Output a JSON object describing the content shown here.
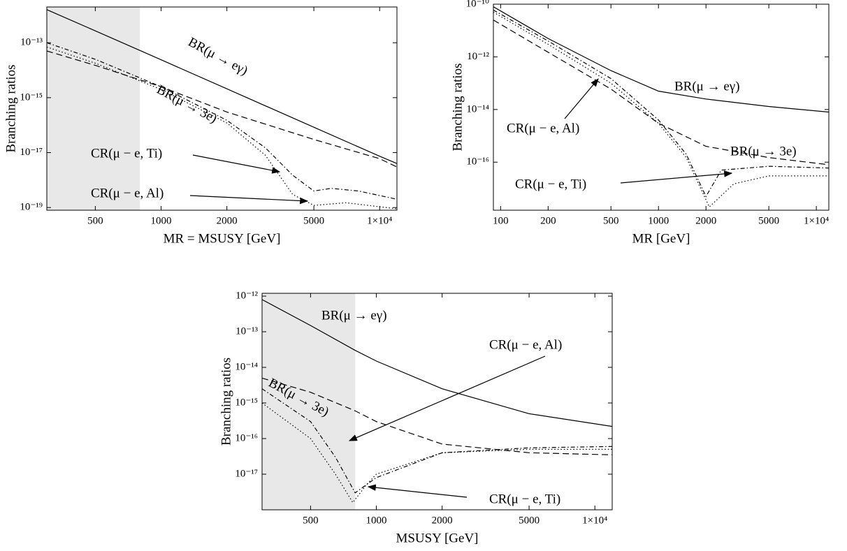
{
  "chart_data": [
    {
      "type": "line",
      "xlabel": "MR = MSUSY [GeV]",
      "ylabel": "Branching ratios",
      "xscale": "log",
      "yscale": "log",
      "xlim": [
        300,
        12000
      ],
      "ylim": [
        8e-20,
        2e-12
      ],
      "xticks": [
        500,
        1000,
        2000,
        5000,
        {
          "value": 10000,
          "label": "1×10⁴"
        }
      ],
      "yticks": [
        {
          "value": 1e-19,
          "label": "10⁻¹⁹"
        },
        {
          "value": 1e-17,
          "label": "10⁻¹⁷"
        },
        {
          "value": 1e-15,
          "label": "10⁻¹⁵"
        },
        {
          "value": 1e-13,
          "label": "10⁻¹³"
        }
      ],
      "shaded_region": [
        300,
        800
      ],
      "series": [
        {
          "name": "BR(μ → eγ)",
          "color": "#000000",
          "dash": "solid",
          "x": [
            300,
            500,
            1000,
            2000,
            5000,
            10000,
            12000
          ],
          "values": [
            1.6e-12,
            2.7e-13,
            2.4e-14,
            2.1e-15,
            8.4e-17,
            7.4e-18,
            4e-18
          ]
        },
        {
          "name": "BR(μ → 3e)",
          "color": "#000000",
          "dash": "dashed",
          "x": [
            300,
            500,
            1000,
            2000,
            5000,
            10000,
            12000
          ],
          "values": [
            5e-14,
            1.5e-14,
            2.5e-15,
            3e-16,
            3e-17,
            6e-18,
            3e-18
          ]
        },
        {
          "name": "CR(μ − e, Ti)",
          "color": "#000000",
          "dash": "dashdot",
          "x": [
            300,
            500,
            1000,
            2000,
            3000,
            4000,
            5000,
            6000,
            8000,
            12000
          ],
          "values": [
            1e-13,
            2.5e-14,
            2.5e-15,
            1.5e-16,
            1.5e-17,
            1.5e-18,
            4e-19,
            5e-19,
            4e-19,
            2e-19
          ]
        },
        {
          "name": "CR(μ − e, Al)",
          "color": "#000000",
          "dash": "dotted",
          "x": [
            300,
            500,
            1000,
            2000,
            3000,
            4000,
            5000,
            7000,
            12000
          ],
          "values": [
            7e-14,
            1.8e-14,
            2e-15,
            1.2e-16,
            8e-18,
            3e-19,
            1.2e-19,
            1.5e-19,
            9e-20
          ]
        }
      ]
    },
    {
      "type": "line",
      "xlabel": "MR [GeV]",
      "ylabel": "Branching ratios",
      "xscale": "log",
      "yscale": "log",
      "xlim": [
        90,
        12000
      ],
      "ylim": [
        1.5e-18,
        1e-10
      ],
      "xticks": [
        100,
        200,
        500,
        1000,
        2000,
        5000,
        {
          "value": 10000,
          "label": "1×10⁴"
        }
      ],
      "yticks": [
        {
          "value": 1e-16,
          "label": "10⁻¹⁶"
        },
        {
          "value": 1e-14,
          "label": "10⁻¹⁴"
        },
        {
          "value": 1e-12,
          "label": "10⁻¹²"
        },
        {
          "value": 1e-10,
          "label": "10⁻¹⁰"
        }
      ],
      "series": [
        {
          "name": "BR(μ → eγ)",
          "color": "#000000",
          "dash": "solid",
          "x": [
            90,
            200,
            500,
            1000,
            2000,
            5000,
            12000
          ],
          "values": [
            8e-11,
            5e-12,
            3e-13,
            5e-14,
            2.5e-14,
            1.3e-14,
            8e-15
          ]
        },
        {
          "name": "BR(μ → 3e)",
          "color": "#000000",
          "dash": "dashed",
          "x": [
            90,
            200,
            500,
            1000,
            2000,
            5000,
            12000
          ],
          "values": [
            2.5e-11,
            1.5e-12,
            6e-14,
            3e-15,
            4e-16,
            1.5e-16,
            8e-17
          ]
        },
        {
          "name": "CR(μ − e, Ti)",
          "color": "#000000",
          "dash": "dashdot",
          "x": [
            90,
            200,
            500,
            1000,
            1500,
            2000,
            2500,
            5000,
            12000
          ],
          "values": [
            6e-11,
            4e-12,
            1.5e-13,
            4e-15,
            2e-16,
            5e-18,
            5e-17,
            7e-17,
            6e-17
          ]
        },
        {
          "name": "CR(μ − e, Al)",
          "color": "#000000",
          "dash": "dotted",
          "x": [
            90,
            200,
            500,
            1000,
            1500,
            2100,
            3000,
            5000,
            12000
          ],
          "values": [
            5e-11,
            3e-12,
            1e-13,
            3e-15,
            1.5e-16,
            2e-18,
            1.5e-17,
            3e-17,
            3e-17
          ]
        }
      ]
    },
    {
      "type": "line",
      "xlabel": "MSUSY [GeV]",
      "ylabel": "Branching ratios",
      "xscale": "log",
      "yscale": "log",
      "xlim": [
        300,
        12000
      ],
      "ylim": [
        1e-18,
        1.2e-12
      ],
      "xticks": [
        500,
        1000,
        2000,
        5000,
        {
          "value": 10000,
          "label": "1×10⁴"
        }
      ],
      "yticks": [
        {
          "value": 1e-17,
          "label": "10⁻¹⁷"
        },
        {
          "value": 1e-16,
          "label": "10⁻¹⁶"
        },
        {
          "value": 1e-15,
          "label": "10⁻¹⁵"
        },
        {
          "value": 1e-14,
          "label": "10⁻¹⁴"
        },
        {
          "value": 1e-13,
          "label": "10⁻¹³"
        },
        {
          "value": 1e-12,
          "label": "10⁻¹²"
        }
      ],
      "shaded_region": [
        300,
        800
      ],
      "series": [
        {
          "name": "BR(μ → eγ)",
          "color": "#000000",
          "dash": "solid",
          "x": [
            300,
            500,
            800,
            1000,
            2000,
            5000,
            12000
          ],
          "values": [
            8e-13,
            1.5e-13,
            3e-14,
            1.5e-14,
            2.5e-15,
            5e-16,
            2.2e-16
          ]
        },
        {
          "name": "BR(μ → 3e)",
          "color": "#000000",
          "dash": "dashed",
          "x": [
            300,
            500,
            800,
            1000,
            2000,
            5000,
            12000
          ],
          "values": [
            5e-15,
            2e-15,
            6e-16,
            3e-16,
            7e-17,
            4e-17,
            3.5e-17
          ]
        },
        {
          "name": "CR(μ − e, Ti)",
          "color": "#000000",
          "dash": "dashdot",
          "x": [
            300,
            500,
            650,
            800,
            1000,
            2000,
            5000,
            12000
          ],
          "values": [
            2.5e-15,
            3e-16,
            3e-17,
            3e-18,
            8e-18,
            4e-17,
            5.5e-17,
            6e-17
          ]
        },
        {
          "name": "CR(μ − e, Al)",
          "color": "#000000",
          "dash": "dotted",
          "x": [
            300,
            500,
            650,
            780,
            900,
            1000,
            2000,
            5000,
            12000
          ],
          "values": [
            1e-15,
            1e-16,
            1e-17,
            1.6e-18,
            5e-18,
            1e-17,
            4e-17,
            5e-17,
            5e-17
          ]
        }
      ]
    }
  ]
}
